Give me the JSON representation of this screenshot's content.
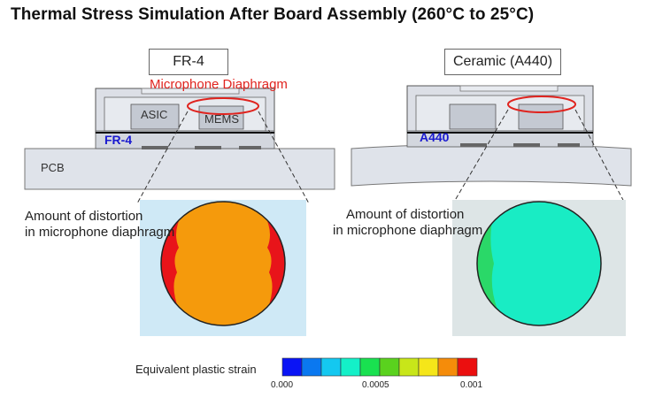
{
  "title": "Thermal Stress Simulation After Board Assembly (260°C to 25°C)",
  "left_panel": {
    "material_box": "FR-4",
    "microphone_label": "Microphone Diaphragm",
    "asic_label": "ASIC",
    "mems_label": "MEMS",
    "substrate_label": "FR-4",
    "pcb_label": "PCB",
    "distortion_line1": "Amount of distortion",
    "distortion_line2": "in microphone diaphragm"
  },
  "right_panel": {
    "material_box": "Ceramic (A440)",
    "substrate_label": "A440",
    "distortion_line1": "Amount of distortion",
    "distortion_line2": "in microphone diaphragm"
  },
  "legend": {
    "title": "Equivalent plastic strain",
    "ticks": [
      "0.000",
      "0.0005",
      "0.001"
    ],
    "colors": [
      "#0a14f5",
      "#0a78f0",
      "#14c8f0",
      "#14f0c8",
      "#19e150",
      "#5ad21e",
      "#c8e619",
      "#f5e619",
      "#f58c0a",
      "#eb0f0f"
    ]
  },
  "colors": {
    "accent_red": "#e0241f",
    "accent_blue": "#1a1ad0",
    "fr4_diaphragm": "#f59a0c",
    "fr4_edge": "#e8141a",
    "ceramic_diaphragm": "#19ecc4",
    "ceramic_edge": "#2ad868"
  }
}
